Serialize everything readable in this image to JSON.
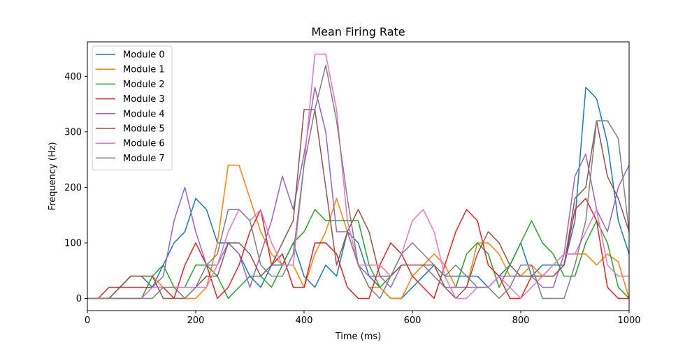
{
  "chart_data": {
    "type": "line",
    "title": "Mean Firing Rate",
    "xlabel": "Time (ms)",
    "ylabel": "Frequency (Hz)",
    "xlim": [
      0,
      1000
    ],
    "ylim": [
      -22,
      462
    ],
    "xticks": [
      0,
      200,
      400,
      600,
      800,
      1000
    ],
    "yticks": [
      0,
      100,
      200,
      300,
      400
    ],
    "grid": false,
    "legend_position": "top-left",
    "x": [
      0,
      20,
      40,
      60,
      80,
      100,
      120,
      140,
      160,
      180,
      200,
      220,
      240,
      260,
      280,
      300,
      320,
      340,
      360,
      380,
      400,
      420,
      440,
      460,
      480,
      500,
      520,
      540,
      560,
      580,
      600,
      620,
      640,
      660,
      680,
      700,
      720,
      740,
      760,
      780,
      800,
      820,
      840,
      860,
      880,
      900,
      920,
      940,
      960,
      980,
      1000
    ],
    "series": [
      {
        "name": "Module 0",
        "color": "#1f77b4",
        "values": [
          0,
          0,
          0,
          20,
          40,
          40,
          20,
          60,
          100,
          120,
          180,
          160,
          100,
          100,
          80,
          40,
          20,
          60,
          60,
          100,
          40,
          20,
          60,
          40,
          120,
          100,
          40,
          20,
          0,
          0,
          20,
          40,
          60,
          40,
          40,
          40,
          40,
          20,
          40,
          60,
          100,
          40,
          60,
          60,
          60,
          140,
          380,
          360,
          280,
          140,
          80
        ]
      },
      {
        "name": "Module 1",
        "color": "#ff7f0e",
        "values": [
          0,
          0,
          0,
          20,
          40,
          40,
          40,
          20,
          20,
          0,
          0,
          20,
          100,
          240,
          240,
          180,
          120,
          80,
          60,
          60,
          20,
          80,
          120,
          180,
          120,
          60,
          20,
          20,
          0,
          0,
          40,
          60,
          80,
          60,
          20,
          20,
          100,
          100,
          80,
          40,
          40,
          60,
          40,
          60,
          80,
          80,
          80,
          60,
          80,
          66,
          0
        ]
      },
      {
        "name": "Module 2",
        "color": "#2ca02c",
        "values": [
          0,
          0,
          0,
          0,
          0,
          0,
          40,
          60,
          20,
          20,
          60,
          60,
          40,
          0,
          20,
          40,
          40,
          20,
          60,
          100,
          120,
          160,
          140,
          140,
          140,
          140,
          60,
          20,
          40,
          60,
          60,
          60,
          60,
          20,
          20,
          80,
          100,
          80,
          20,
          60,
          100,
          140,
          100,
          80,
          40,
          40,
          100,
          140,
          100,
          20,
          0
        ]
      },
      {
        "name": "Module 3",
        "color": "#d62728",
        "values": [
          0,
          0,
          20,
          20,
          20,
          20,
          20,
          20,
          0,
          60,
          100,
          60,
          0,
          20,
          60,
          120,
          160,
          60,
          80,
          20,
          20,
          100,
          100,
          80,
          20,
          0,
          0,
          60,
          100,
          80,
          40,
          20,
          0,
          60,
          120,
          160,
          140,
          60,
          40,
          0,
          0,
          40,
          40,
          40,
          60,
          160,
          180,
          140,
          20,
          0,
          0
        ]
      },
      {
        "name": "Module 4",
        "color": "#9467bd",
        "values": [
          0,
          0,
          0,
          0,
          0,
          0,
          20,
          40,
          140,
          200,
          120,
          60,
          60,
          100,
          80,
          20,
          80,
          140,
          220,
          160,
          260,
          380,
          300,
          120,
          120,
          60,
          40,
          40,
          20,
          60,
          60,
          60,
          40,
          20,
          20,
          20,
          20,
          20,
          40,
          40,
          40,
          40,
          20,
          20,
          80,
          220,
          260,
          160,
          120,
          200,
          240
        ]
      },
      {
        "name": "Module 5",
        "color": "#8c564b",
        "values": [
          0,
          0,
          0,
          20,
          40,
          40,
          40,
          0,
          0,
          0,
          20,
          40,
          40,
          100,
          100,
          80,
          40,
          60,
          100,
          140,
          340,
          340,
          200,
          60,
          120,
          160,
          120,
          40,
          40,
          60,
          60,
          60,
          60,
          20,
          0,
          20,
          80,
          120,
          100,
          60,
          40,
          40,
          40,
          40,
          60,
          180,
          200,
          320,
          220,
          180,
          120
        ]
      },
      {
        "name": "Module 6",
        "color": "#e377c2",
        "values": [
          0,
          0,
          0,
          0,
          0,
          0,
          20,
          20,
          20,
          20,
          20,
          20,
          60,
          120,
          160,
          140,
          160,
          100,
          60,
          60,
          240,
          440,
          440,
          340,
          140,
          60,
          60,
          60,
          40,
          80,
          140,
          160,
          120,
          40,
          0,
          0,
          20,
          20,
          40,
          20,
          0,
          20,
          40,
          60,
          80,
          80,
          120,
          160,
          60,
          40,
          40
        ]
      },
      {
        "name": "Module 7",
        "color": "#7f7f7f",
        "values": [
          0,
          0,
          0,
          0,
          0,
          0,
          0,
          20,
          20,
          0,
          20,
          60,
          80,
          160,
          160,
          140,
          60,
          40,
          40,
          80,
          240,
          340,
          420,
          320,
          180,
          60,
          20,
          0,
          40,
          80,
          100,
          80,
          60,
          40,
          60,
          40,
          20,
          20,
          0,
          20,
          60,
          60,
          0,
          0,
          0,
          60,
          140,
          320,
          320,
          288,
          120
        ]
      }
    ]
  }
}
